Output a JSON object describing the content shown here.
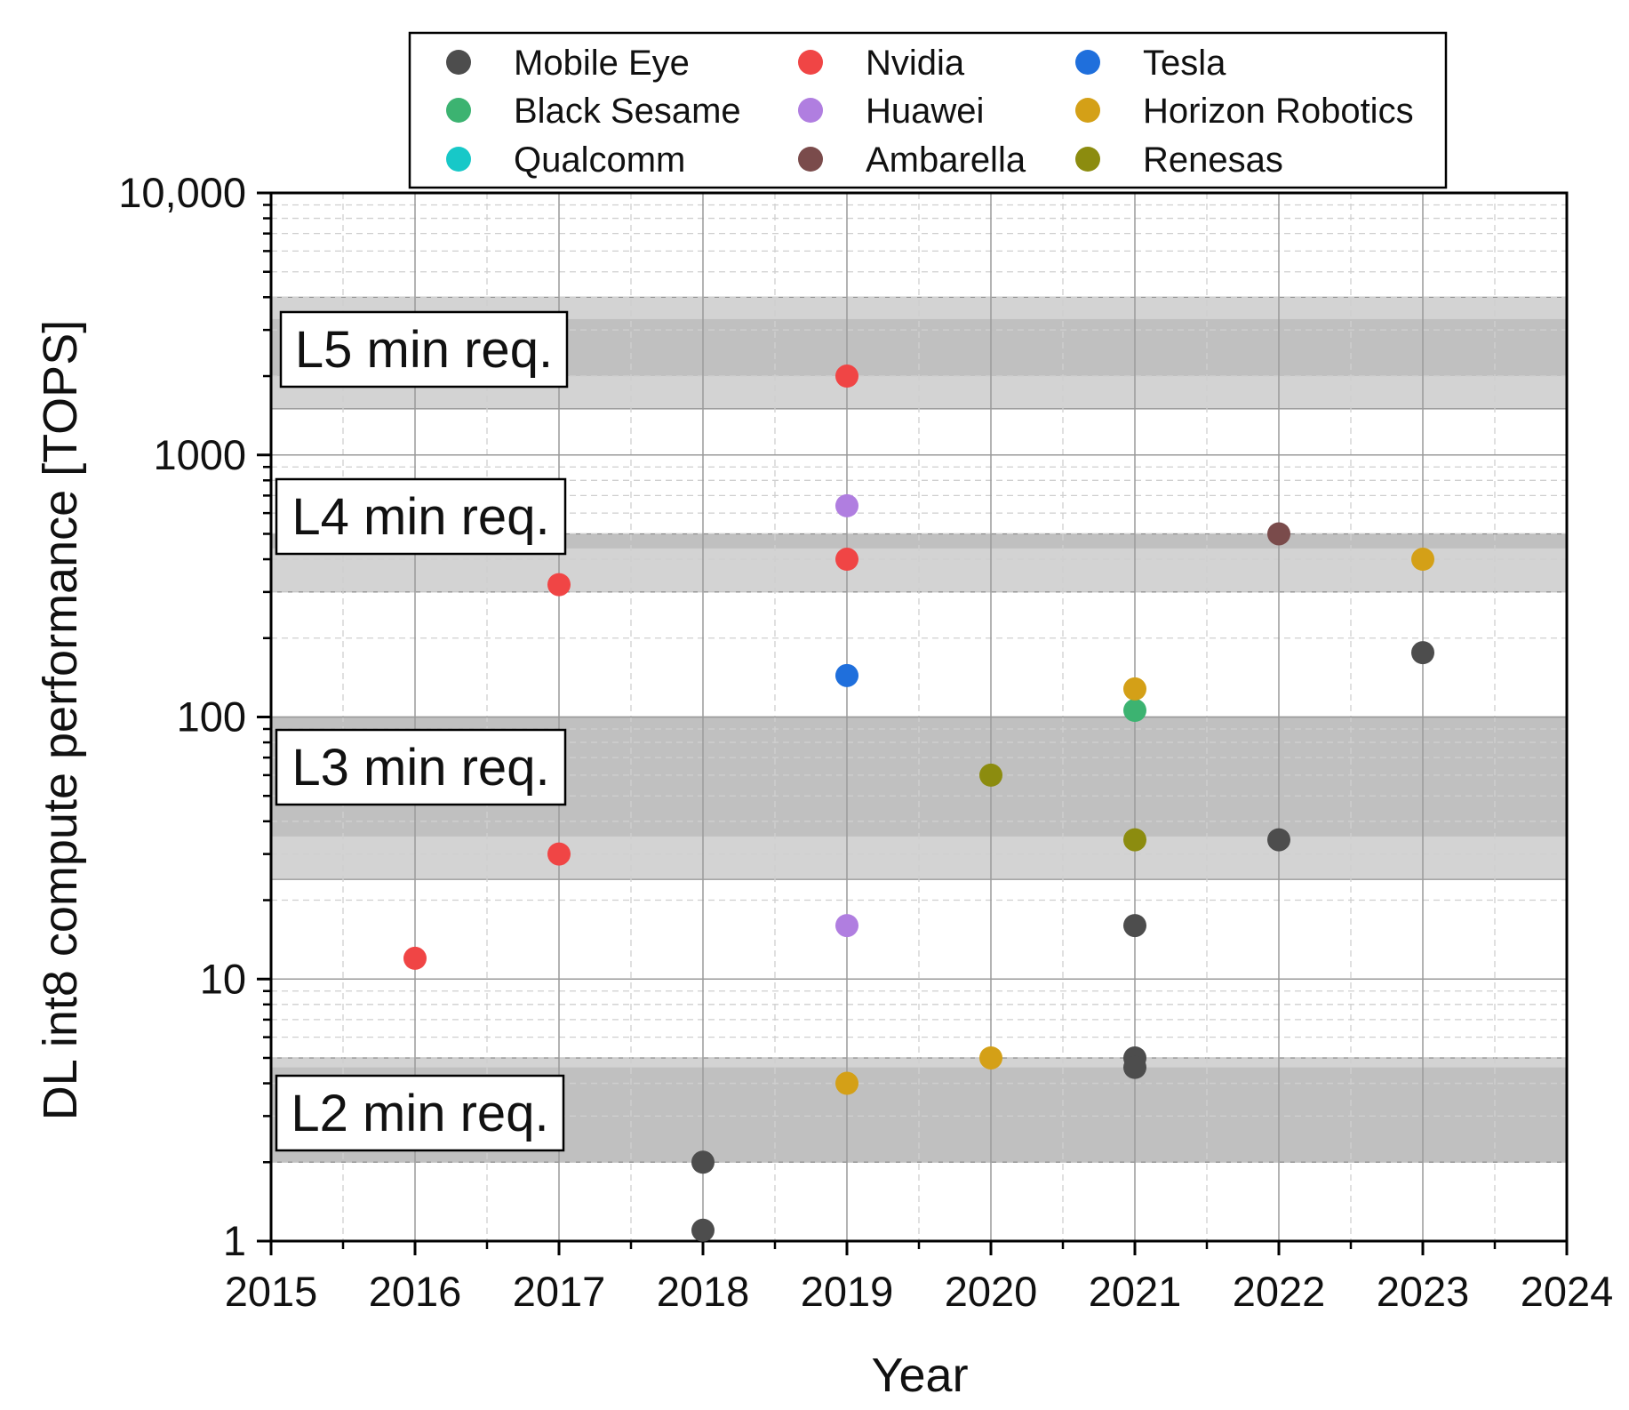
{
  "chart_data": {
    "type": "scatter",
    "title": "",
    "xlabel": "Year",
    "ylabel": "DL int8 compute performance [TOPS]",
    "xlim": [
      2015,
      2024
    ],
    "ylim": [
      1,
      10000
    ],
    "yscale": "log",
    "grid": true,
    "legend_position": "top",
    "x_tick_labels": [
      "2015",
      "2016",
      "2017",
      "2018",
      "2019",
      "2020",
      "2021",
      "2022",
      "2023",
      "2024"
    ],
    "y_tick_labels": [
      {
        "value": 1,
        "label": "1"
      },
      {
        "value": 10,
        "label": "10"
      },
      {
        "value": 100,
        "label": "100"
      },
      {
        "value": 1000,
        "label": "1000"
      },
      {
        "value": 10000,
        "label": "10,000"
      }
    ],
    "bands": [
      {
        "label": "L5 min req.",
        "low": 1500,
        "high": 4000,
        "inner_low": 2000,
        "inner_high": 3300
      },
      {
        "label": "L4 min req.",
        "low": 300,
        "high": 500,
        "inner_low": 440,
        "inner_high": 500
      },
      {
        "label": "L3 min req.",
        "low": 24,
        "high": 100,
        "inner_low": 35,
        "inner_high": 100
      },
      {
        "label": "L2 min req.",
        "low": 2,
        "high": 5,
        "inner_low": 2,
        "inner_high": 4.6
      }
    ],
    "series": [
      {
        "name": "Mobile Eye",
        "color": "#4d4d4d",
        "points": [
          [
            2018,
            2
          ],
          [
            2018,
            1.1
          ],
          [
            2021,
            16
          ],
          [
            2021,
            5
          ],
          [
            2021,
            4.6
          ],
          [
            2022,
            34
          ],
          [
            2023,
            176
          ]
        ]
      },
      {
        "name": "Black Sesame",
        "color": "#3cb371",
        "points": [
          [
            2021,
            106
          ]
        ]
      },
      {
        "name": "Qualcomm",
        "color": "#17c8c8",
        "points": []
      },
      {
        "name": "Nvidia",
        "color": "#f04545",
        "points": [
          [
            2016,
            12
          ],
          [
            2017,
            320
          ],
          [
            2017,
            30
          ],
          [
            2019,
            2000
          ],
          [
            2019,
            400
          ]
        ]
      },
      {
        "name": "Huawei",
        "color": "#b07ee0",
        "points": [
          [
            2019,
            640
          ],
          [
            2019,
            16
          ]
        ]
      },
      {
        "name": "Ambarella",
        "color": "#7a4b4b",
        "points": [
          [
            2022,
            500
          ]
        ]
      },
      {
        "name": "Tesla",
        "color": "#1f6fdc",
        "points": [
          [
            2019,
            144
          ]
        ]
      },
      {
        "name": "Horizon Robotics",
        "color": "#d4a017",
        "points": [
          [
            2019,
            4
          ],
          [
            2020,
            5
          ],
          [
            2021,
            128
          ],
          [
            2023,
            400
          ]
        ]
      },
      {
        "name": "Renesas",
        "color": "#8c8c0f",
        "points": [
          [
            2020,
            60
          ],
          [
            2021,
            34
          ]
        ]
      }
    ]
  }
}
